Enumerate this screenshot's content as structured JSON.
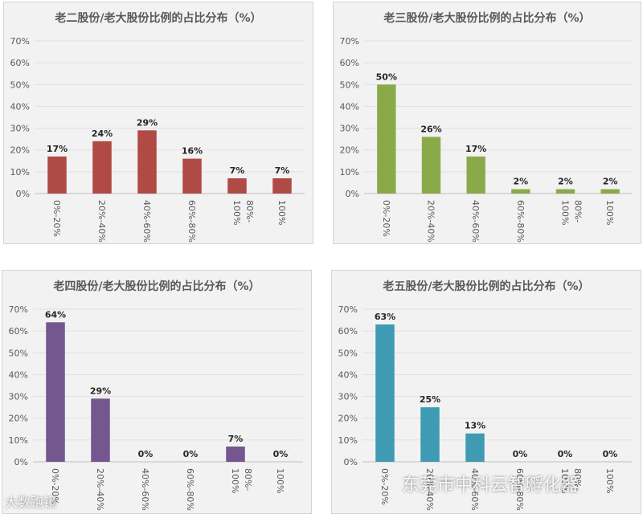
{
  "chart_data": [
    {
      "type": "bar",
      "title": "老二股份/老大股份比例的占比分布（%）",
      "categories": [
        "0%-20%",
        "20%-40%",
        "40%-60%",
        "60%-80%",
        "80%-100%",
        "100%"
      ],
      "values": [
        17,
        24,
        29,
        16,
        7,
        7
      ],
      "labels": [
        "17%",
        "24%",
        "29%",
        "16%",
        "7%",
        "7%"
      ],
      "ylim": [
        0,
        70
      ],
      "yticks": [
        "0%",
        "10%",
        "20%",
        "30%",
        "40%",
        "50%",
        "60%",
        "70%"
      ],
      "color": "#b04a45",
      "grid": true
    },
    {
      "type": "bar",
      "title": "老三股份/老大股份比例的占比分布（%）",
      "categories": [
        "0%-20%",
        "20%-40%",
        "40%-60%",
        "60%-80%",
        "80%-100%",
        "100%"
      ],
      "values": [
        50,
        26,
        17,
        2,
        2,
        2
      ],
      "labels": [
        "50%",
        "26%",
        "17%",
        "2%",
        "2%",
        "2%"
      ],
      "ylim": [
        0,
        70
      ],
      "yticks": [
        "0%",
        "10%",
        "20%",
        "30%",
        "40%",
        "50%",
        "60%",
        "70%"
      ],
      "color": "#8aaa4a",
      "grid": true
    },
    {
      "type": "bar",
      "title": "老四股份/老大股份比例的占比分布（%）",
      "categories": [
        "0%-20%",
        "20%-40%",
        "40%-60%",
        "60%-80%",
        "80%-100%",
        "100%"
      ],
      "values": [
        64,
        29,
        0,
        0,
        7,
        0
      ],
      "labels": [
        "64%",
        "29%",
        "0%",
        "0%",
        "7%",
        "0%"
      ],
      "ylim": [
        0,
        70
      ],
      "yticks": [
        "0%",
        "10%",
        "20%",
        "30%",
        "40%",
        "50%",
        "60%",
        "70%"
      ],
      "color": "#74578f",
      "grid": true
    },
    {
      "type": "bar",
      "title": "老五股份/老大股份比例的占比分布（%）",
      "categories": [
        "0%-20%",
        "20%-40%",
        "40%-60%",
        "60%-80%",
        "80%-100%",
        "100%"
      ],
      "values": [
        63,
        25,
        13,
        0,
        0,
        0
      ],
      "labels": [
        "63%",
        "25%",
        "13%",
        "0%",
        "0%",
        "0%"
      ],
      "ylim": [
        0,
        70
      ],
      "yticks": [
        "0%",
        "10%",
        "20%",
        "30%",
        "40%",
        "50%",
        "60%",
        "70%"
      ],
      "color": "#3f9ab3",
      "grid": true
    }
  ],
  "watermarks": {
    "left": "大数跑镜",
    "right": "东莞市中科云智孵化器"
  }
}
